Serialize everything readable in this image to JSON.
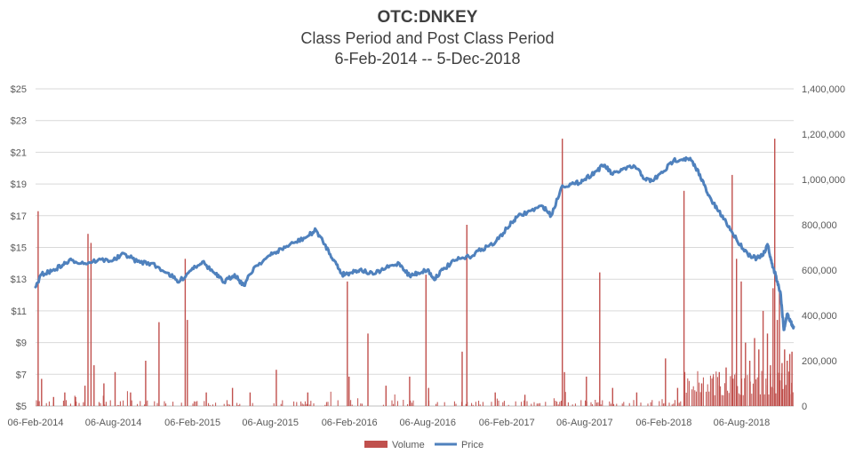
{
  "chart_data": {
    "type": "bar+line",
    "title": "OTC:DNKEY",
    "subtitle": "Class Period and Post Class Period",
    "period": "6-Feb-2014 -- 5-Dec-2018",
    "y_left_ticks": [
      "$5",
      "$7",
      "$9",
      "$11",
      "$13",
      "$15",
      "$17",
      "$19",
      "$21",
      "$23",
      "$25"
    ],
    "y_left_range": [
      5,
      25
    ],
    "y_right_ticks": [
      "0",
      "200,000",
      "400,000",
      "600,000",
      "800,000",
      "1,000,000",
      "1,200,000",
      "1,400,000"
    ],
    "y_right_range": [
      0,
      1400000
    ],
    "x_ticks": [
      "06-Feb-2014",
      "06-Aug-2014",
      "06-Feb-2015",
      "06-Aug-2015",
      "06-Feb-2016",
      "06-Aug-2016",
      "06-Feb-2017",
      "06-Aug-2017",
      "06-Feb-2018",
      "06-Aug-2018"
    ],
    "x_range": [
      "2014-02-06",
      "2018-12-05"
    ],
    "grid": true,
    "legend_position": "bottom",
    "series": [
      {
        "name": "Price",
        "kind": "line",
        "color": "#4f81bd",
        "axis": "left",
        "points": [
          [
            "2014-02-06",
            12.5
          ],
          [
            "2014-02-20",
            13.3
          ],
          [
            "2014-03-15",
            13.5
          ],
          [
            "2014-04-10",
            13.9
          ],
          [
            "2014-05-01",
            14.2
          ],
          [
            "2014-06-01",
            14.0
          ],
          [
            "2014-07-01",
            14.2
          ],
          [
            "2014-08-06",
            14.2
          ],
          [
            "2014-09-01",
            14.6
          ],
          [
            "2014-10-01",
            14.1
          ],
          [
            "2014-11-01",
            14.0
          ],
          [
            "2014-12-10",
            13.4
          ],
          [
            "2015-01-05",
            12.8
          ],
          [
            "2015-02-06",
            13.7
          ],
          [
            "2015-03-01",
            14.1
          ],
          [
            "2015-04-01",
            13.3
          ],
          [
            "2015-04-20",
            12.8
          ],
          [
            "2015-05-15",
            13.3
          ],
          [
            "2015-06-05",
            12.6
          ],
          [
            "2015-07-01",
            13.8
          ],
          [
            "2015-08-06",
            14.5
          ],
          [
            "2015-09-01",
            14.9
          ],
          [
            "2015-10-01",
            15.3
          ],
          [
            "2015-11-01",
            15.7
          ],
          [
            "2015-11-20",
            16.1
          ],
          [
            "2015-12-10",
            15.2
          ],
          [
            "2016-01-01",
            14.2
          ],
          [
            "2016-01-20",
            13.3
          ],
          [
            "2016-02-06",
            13.4
          ],
          [
            "2016-03-01",
            13.6
          ],
          [
            "2016-04-01",
            13.3
          ],
          [
            "2016-05-01",
            13.7
          ],
          [
            "2016-06-01",
            14.0
          ],
          [
            "2016-06-25",
            13.2
          ],
          [
            "2016-07-15",
            13.4
          ],
          [
            "2016-08-06",
            13.6
          ],
          [
            "2016-08-20",
            13.0
          ],
          [
            "2016-09-10",
            13.6
          ],
          [
            "2016-10-10",
            14.2
          ],
          [
            "2016-11-10",
            14.4
          ],
          [
            "2016-12-10",
            14.9
          ],
          [
            "2017-01-10",
            15.3
          ],
          [
            "2017-02-06",
            16.2
          ],
          [
            "2017-03-01",
            16.9
          ],
          [
            "2017-04-01",
            17.3
          ],
          [
            "2017-05-01",
            17.6
          ],
          [
            "2017-05-20",
            17.0
          ],
          [
            "2017-06-15",
            18.9
          ],
          [
            "2017-07-15",
            19.0
          ],
          [
            "2017-08-06",
            19.3
          ],
          [
            "2017-09-01",
            19.8
          ],
          [
            "2017-09-20",
            20.2
          ],
          [
            "2017-10-10",
            19.6
          ],
          [
            "2017-11-01",
            19.9
          ],
          [
            "2017-12-01",
            20.1
          ],
          [
            "2017-12-25",
            19.3
          ],
          [
            "2018-01-10",
            19.2
          ],
          [
            "2018-02-06",
            19.8
          ],
          [
            "2018-03-01",
            20.5
          ],
          [
            "2018-03-25",
            20.6
          ],
          [
            "2018-04-10",
            20.5
          ],
          [
            "2018-05-01",
            19.6
          ],
          [
            "2018-05-20",
            18.3
          ],
          [
            "2018-06-10",
            17.4
          ],
          [
            "2018-07-01",
            16.6
          ],
          [
            "2018-07-25",
            15.5
          ],
          [
            "2018-08-20",
            14.6
          ],
          [
            "2018-09-10",
            14.3
          ],
          [
            "2018-09-25",
            14.5
          ],
          [
            "2018-10-05",
            15.2
          ],
          [
            "2018-10-15",
            14.0
          ],
          [
            "2018-10-25",
            13.2
          ],
          [
            "2018-11-05",
            12.0
          ],
          [
            "2018-11-12",
            9.8
          ],
          [
            "2018-11-20",
            10.8
          ],
          [
            "2018-11-28",
            10.3
          ],
          [
            "2018-12-05",
            10.0
          ]
        ]
      },
      {
        "name": "Volume",
        "kind": "bar",
        "color": "#c0504d",
        "axis": "right",
        "points": [
          [
            "2014-02-12",
            860000
          ],
          [
            "2014-02-20",
            120000
          ],
          [
            "2014-03-20",
            40000
          ],
          [
            "2014-04-15",
            60000
          ],
          [
            "2014-05-10",
            40000
          ],
          [
            "2014-06-01",
            90000
          ],
          [
            "2014-06-08",
            760000
          ],
          [
            "2014-06-15",
            720000
          ],
          [
            "2014-06-22",
            180000
          ],
          [
            "2014-07-15",
            100000
          ],
          [
            "2014-08-10",
            150000
          ],
          [
            "2014-09-15",
            60000
          ],
          [
            "2014-10-20",
            200000
          ],
          [
            "2014-11-20",
            370000
          ],
          [
            "2015-01-20",
            650000
          ],
          [
            "2015-01-25",
            380000
          ],
          [
            "2015-03-10",
            60000
          ],
          [
            "2015-05-10",
            80000
          ],
          [
            "2015-06-20",
            60000
          ],
          [
            "2015-08-20",
            160000
          ],
          [
            "2015-11-01",
            60000
          ],
          [
            "2016-02-01",
            550000
          ],
          [
            "2016-02-05",
            130000
          ],
          [
            "2016-03-20",
            320000
          ],
          [
            "2016-05-01",
            90000
          ],
          [
            "2016-06-25",
            130000
          ],
          [
            "2016-08-02",
            580000
          ],
          [
            "2016-08-08",
            80000
          ],
          [
            "2016-10-25",
            240000
          ],
          [
            "2016-11-05",
            800000
          ],
          [
            "2017-01-10",
            60000
          ],
          [
            "2017-03-20",
            50000
          ],
          [
            "2017-06-15",
            1180000
          ],
          [
            "2017-06-20",
            150000
          ],
          [
            "2017-08-10",
            130000
          ],
          [
            "2017-09-10",
            590000
          ],
          [
            "2017-10-10",
            80000
          ],
          [
            "2017-12-05",
            60000
          ],
          [
            "2018-02-10",
            210000
          ],
          [
            "2018-03-10",
            80000
          ],
          [
            "2018-03-25",
            950000
          ],
          [
            "2018-05-05",
            100000
          ],
          [
            "2018-06-01",
            130000
          ],
          [
            "2018-06-15",
            150000
          ],
          [
            "2018-07-01",
            170000
          ],
          [
            "2018-07-15",
            1020000
          ],
          [
            "2018-07-25",
            650000
          ],
          [
            "2018-08-05",
            550000
          ],
          [
            "2018-08-15",
            280000
          ],
          [
            "2018-08-25",
            200000
          ],
          [
            "2018-09-05",
            300000
          ],
          [
            "2018-09-15",
            250000
          ],
          [
            "2018-09-25",
            420000
          ],
          [
            "2018-10-05",
            320000
          ],
          [
            "2018-10-12",
            180000
          ],
          [
            "2018-10-18",
            520000
          ],
          [
            "2018-10-22",
            1180000
          ],
          [
            "2018-10-28",
            380000
          ],
          [
            "2018-11-02",
            520000
          ],
          [
            "2018-11-08",
            190000
          ],
          [
            "2018-11-14",
            250000
          ],
          [
            "2018-11-20",
            200000
          ],
          [
            "2018-11-26",
            230000
          ],
          [
            "2018-12-01",
            240000
          ]
        ]
      }
    ]
  }
}
